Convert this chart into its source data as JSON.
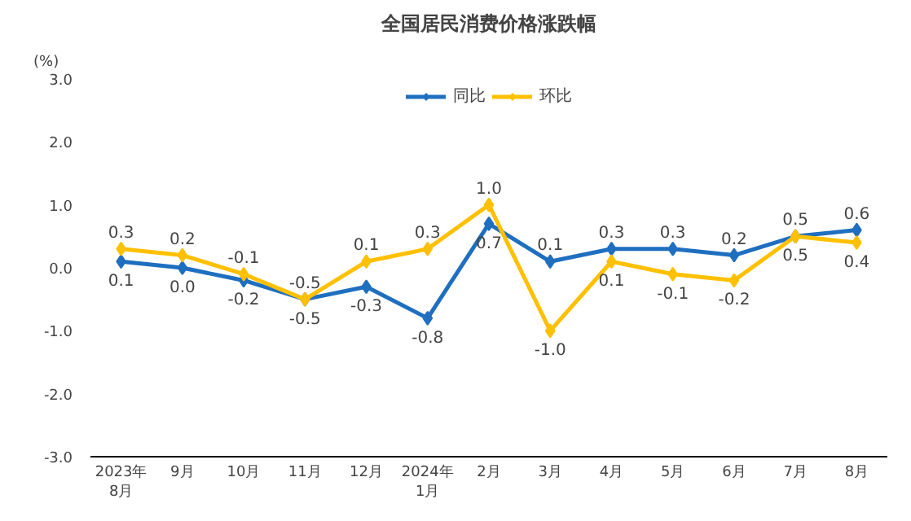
{
  "chart_data": {
    "type": "line",
    "title": "全国居民消费价格涨跌幅",
    "ylabel": "(%)",
    "categories": [
      "2023年\n8月",
      "9月",
      "10月",
      "11月",
      "12月",
      "2024年\n1月",
      "2月",
      "3月",
      "4月",
      "5月",
      "6月",
      "7月",
      "8月"
    ],
    "series": [
      {
        "name": "同比",
        "color": "#1f6fc0",
        "values": [
          0.1,
          0.0,
          -0.2,
          -0.5,
          -0.3,
          -0.8,
          0.7,
          0.1,
          0.3,
          0.3,
          0.2,
          0.5,
          0.6
        ],
        "value_labels": [
          "0.1",
          "0.0",
          "-0.2",
          "-0.5",
          "-0.3",
          "-0.8",
          "0.7",
          "0.1",
          "0.3",
          "0.3",
          "0.2",
          "0.5",
          "0.6"
        ]
      },
      {
        "name": "环比",
        "color": "#ffc000",
        "values": [
          0.3,
          0.2,
          -0.1,
          -0.5,
          0.1,
          0.3,
          1.0,
          -1.0,
          0.1,
          -0.1,
          -0.2,
          0.5,
          0.4
        ],
        "value_labels": [
          "0.3",
          "0.2",
          "-0.1",
          "-0.5",
          "0.1",
          "0.3",
          "1.0",
          "-1.0",
          "0.1",
          "-0.1",
          "-0.2",
          "0.5",
          "0.4"
        ]
      }
    ],
    "ylim": [
      -3.0,
      3.0
    ],
    "yticks": [
      {
        "value": -3,
        "label": "-3.0"
      },
      {
        "value": -2,
        "label": "-2.0"
      },
      {
        "value": -1,
        "label": "-1.0"
      },
      {
        "value": 0,
        "label": "0.0"
      },
      {
        "value": 1,
        "label": "1.0"
      },
      {
        "value": 2,
        "label": "2.0"
      },
      {
        "value": 3,
        "label": "3.0"
      }
    ],
    "legend": "top",
    "marker": "diamond",
    "grid": false
  }
}
